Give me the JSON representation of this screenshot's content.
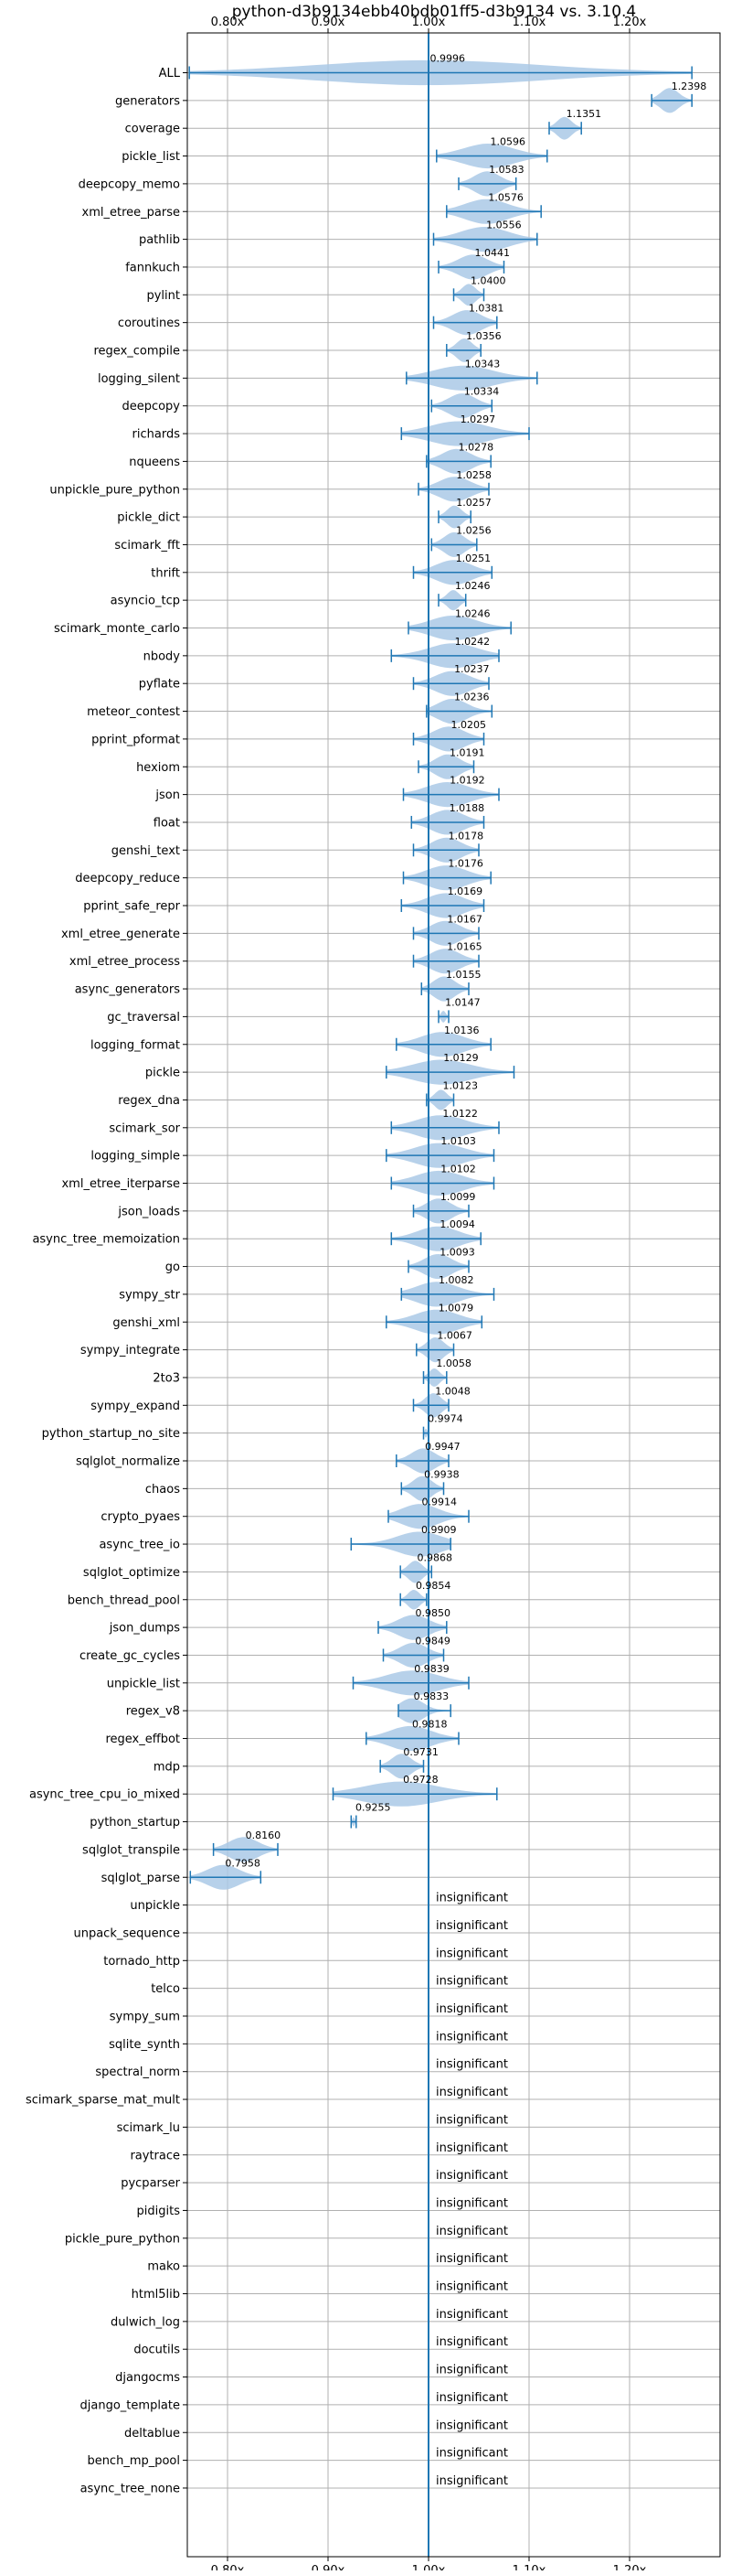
{
  "chart_data": {
    "type": "violin",
    "title": "python-d3b9134ebb40bdb01ff5-d3b9134 vs. 3.10.4",
    "xlabel": "",
    "ylabel": "",
    "x_ticks": [
      "0.80x",
      "0.90x",
      "1.00x",
      "1.10x",
      "1.20x"
    ],
    "x_tick_values": [
      0.8,
      0.9,
      1.0,
      1.1,
      1.2
    ],
    "xlim": [
      0.76,
      1.29
    ],
    "grid": true,
    "reference_line": 1.0,
    "colors": {
      "violin": "#aac9e6",
      "line": "#1f77b4",
      "grid": "#b0b0b0"
    },
    "insignificant_label": "insignificant",
    "benchmarks": [
      {
        "name": "ALL",
        "value": 0.9996,
        "label": "0.9996",
        "low": 0.762,
        "high": 1.262
      },
      {
        "name": "generators",
        "value": 1.2398,
        "label": "1.2398",
        "low": 1.222,
        "high": 1.262
      },
      {
        "name": "coverage",
        "value": 1.1351,
        "label": "1.1351",
        "low": 1.12,
        "high": 1.152
      },
      {
        "name": "pickle_list",
        "value": 1.0596,
        "label": "1.0596",
        "low": 1.008,
        "high": 1.118
      },
      {
        "name": "deepcopy_memo",
        "value": 1.0583,
        "label": "1.0583",
        "low": 1.03,
        "high": 1.087
      },
      {
        "name": "xml_etree_parse",
        "value": 1.0576,
        "label": "1.0576",
        "low": 1.018,
        "high": 1.112
      },
      {
        "name": "pathlib",
        "value": 1.0556,
        "label": "1.0556",
        "low": 1.005,
        "high": 1.108
      },
      {
        "name": "fannkuch",
        "value": 1.0441,
        "label": "1.0441",
        "low": 1.01,
        "high": 1.075
      },
      {
        "name": "pylint",
        "value": 1.04,
        "label": "1.0400",
        "low": 1.025,
        "high": 1.055
      },
      {
        "name": "coroutines",
        "value": 1.0381,
        "label": "1.0381",
        "low": 1.005,
        "high": 1.068
      },
      {
        "name": "regex_compile",
        "value": 1.0356,
        "label": "1.0356",
        "low": 1.018,
        "high": 1.052
      },
      {
        "name": "logging_silent",
        "value": 1.0343,
        "label": "1.0343",
        "low": 0.978,
        "high": 1.108
      },
      {
        "name": "deepcopy",
        "value": 1.0334,
        "label": "1.0334",
        "low": 1.003,
        "high": 1.063
      },
      {
        "name": "richards",
        "value": 1.0297,
        "label": "1.0297",
        "low": 0.973,
        "high": 1.1
      },
      {
        "name": "nqueens",
        "value": 1.0278,
        "label": "1.0278",
        "low": 0.998,
        "high": 1.062
      },
      {
        "name": "unpickle_pure_python",
        "value": 1.0258,
        "label": "1.0258",
        "low": 0.99,
        "high": 1.06
      },
      {
        "name": "pickle_dict",
        "value": 1.0257,
        "label": "1.0257",
        "low": 1.01,
        "high": 1.042
      },
      {
        "name": "scimark_fft",
        "value": 1.0256,
        "label": "1.0256",
        "low": 1.003,
        "high": 1.048
      },
      {
        "name": "thrift",
        "value": 1.0251,
        "label": "1.0251",
        "low": 0.985,
        "high": 1.063
      },
      {
        "name": "asyncio_tcp",
        "value": 1.0246,
        "label": "1.0246",
        "low": 1.01,
        "high": 1.037
      },
      {
        "name": "scimark_monte_carlo",
        "value": 1.0246,
        "label": "1.0246",
        "low": 0.98,
        "high": 1.082
      },
      {
        "name": "nbody",
        "value": 1.0242,
        "label": "1.0242",
        "low": 0.963,
        "high": 1.07
      },
      {
        "name": "pyflate",
        "value": 1.0237,
        "label": "1.0237",
        "low": 0.985,
        "high": 1.06
      },
      {
        "name": "meteor_contest",
        "value": 1.0236,
        "label": "1.0236",
        "low": 0.998,
        "high": 1.063
      },
      {
        "name": "pprint_pformat",
        "value": 1.0205,
        "label": "1.0205",
        "low": 0.985,
        "high": 1.055
      },
      {
        "name": "hexiom",
        "value": 1.0191,
        "label": "1.0191",
        "low": 0.99,
        "high": 1.045
      },
      {
        "name": "json",
        "value": 1.0192,
        "label": "1.0192",
        "low": 0.975,
        "high": 1.07
      },
      {
        "name": "float",
        "value": 1.0188,
        "label": "1.0188",
        "low": 0.983,
        "high": 1.055
      },
      {
        "name": "genshi_text",
        "value": 1.0178,
        "label": "1.0178",
        "low": 0.985,
        "high": 1.05
      },
      {
        "name": "deepcopy_reduce",
        "value": 1.0176,
        "label": "1.0176",
        "low": 0.975,
        "high": 1.062
      },
      {
        "name": "pprint_safe_repr",
        "value": 1.0169,
        "label": "1.0169",
        "low": 0.973,
        "high": 1.055
      },
      {
        "name": "xml_etree_generate",
        "value": 1.0167,
        "label": "1.0167",
        "low": 0.985,
        "high": 1.05
      },
      {
        "name": "xml_etree_process",
        "value": 1.0165,
        "label": "1.0165",
        "low": 0.985,
        "high": 1.05
      },
      {
        "name": "async_generators",
        "value": 1.0155,
        "label": "1.0155",
        "low": 0.993,
        "high": 1.04
      },
      {
        "name": "gc_traversal",
        "value": 1.0147,
        "label": "1.0147",
        "low": 1.01,
        "high": 1.02
      },
      {
        "name": "logging_format",
        "value": 1.0136,
        "label": "1.0136",
        "low": 0.968,
        "high": 1.062
      },
      {
        "name": "pickle",
        "value": 1.0129,
        "label": "1.0129",
        "low": 0.958,
        "high": 1.085
      },
      {
        "name": "regex_dna",
        "value": 1.0123,
        "label": "1.0123",
        "low": 0.998,
        "high": 1.025
      },
      {
        "name": "scimark_sor",
        "value": 1.0122,
        "label": "1.0122",
        "low": 0.963,
        "high": 1.07
      },
      {
        "name": "logging_simple",
        "value": 1.0103,
        "label": "1.0103",
        "low": 0.958,
        "high": 1.065
      },
      {
        "name": "xml_etree_iterparse",
        "value": 1.0102,
        "label": "1.0102",
        "low": 0.963,
        "high": 1.065
      },
      {
        "name": "json_loads",
        "value": 1.0099,
        "label": "1.0099",
        "low": 0.985,
        "high": 1.04
      },
      {
        "name": "async_tree_memoization",
        "value": 1.0094,
        "label": "1.0094",
        "low": 0.963,
        "high": 1.052
      },
      {
        "name": "go",
        "value": 1.0093,
        "label": "1.0093",
        "low": 0.98,
        "high": 1.04
      },
      {
        "name": "sympy_str",
        "value": 1.0082,
        "label": "1.0082",
        "low": 0.973,
        "high": 1.065
      },
      {
        "name": "genshi_xml",
        "value": 1.0079,
        "label": "1.0079",
        "low": 0.958,
        "high": 1.053
      },
      {
        "name": "sympy_integrate",
        "value": 1.0067,
        "label": "1.0067",
        "low": 0.988,
        "high": 1.025
      },
      {
        "name": "2to3",
        "value": 1.0058,
        "label": "1.0058",
        "low": 0.995,
        "high": 1.018
      },
      {
        "name": "sympy_expand",
        "value": 1.0048,
        "label": "1.0048",
        "low": 0.985,
        "high": 1.02
      },
      {
        "name": "python_startup_no_site",
        "value": 0.9974,
        "label": "0.9974",
        "low": 0.995,
        "high": 1.0
      },
      {
        "name": "sqlglot_normalize",
        "value": 0.9947,
        "label": "0.9947",
        "low": 0.968,
        "high": 1.02
      },
      {
        "name": "chaos",
        "value": 0.9938,
        "label": "0.9938",
        "low": 0.973,
        "high": 1.015
      },
      {
        "name": "crypto_pyaes",
        "value": 0.9914,
        "label": "0.9914",
        "low": 0.96,
        "high": 1.04
      },
      {
        "name": "async_tree_io",
        "value": 0.9909,
        "label": "0.9909",
        "low": 0.923,
        "high": 1.022
      },
      {
        "name": "sqlglot_optimize",
        "value": 0.9868,
        "label": "0.9868",
        "low": 0.972,
        "high": 1.003
      },
      {
        "name": "bench_thread_pool",
        "value": 0.9854,
        "label": "0.9854",
        "low": 0.972,
        "high": 0.998
      },
      {
        "name": "json_dumps",
        "value": 0.985,
        "label": "0.9850",
        "low": 0.95,
        "high": 1.018
      },
      {
        "name": "create_gc_cycles",
        "value": 0.9849,
        "label": "0.9849",
        "low": 0.955,
        "high": 1.015
      },
      {
        "name": "unpickle_list",
        "value": 0.9839,
        "label": "0.9839",
        "low": 0.925,
        "high": 1.04
      },
      {
        "name": "regex_v8",
        "value": 0.9833,
        "label": "0.9833",
        "low": 0.97,
        "high": 1.022
      },
      {
        "name": "regex_effbot",
        "value": 0.9818,
        "label": "0.9818",
        "low": 0.938,
        "high": 1.03
      },
      {
        "name": "mdp",
        "value": 0.9731,
        "label": "0.9731",
        "low": 0.952,
        "high": 0.995
      },
      {
        "name": "async_tree_cpu_io_mixed",
        "value": 0.9728,
        "label": "0.9728",
        "low": 0.905,
        "high": 1.068
      },
      {
        "name": "python_startup",
        "value": 0.9255,
        "label": "0.9255",
        "low": 0.923,
        "high": 0.928
      },
      {
        "name": "sqlglot_transpile",
        "value": 0.816,
        "label": "0.8160",
        "low": 0.786,
        "high": 0.85
      },
      {
        "name": "sqlglot_parse",
        "value": 0.7958,
        "label": "0.7958",
        "low": 0.763,
        "high": 0.833
      },
      {
        "name": "unpickle",
        "insignificant": true
      },
      {
        "name": "unpack_sequence",
        "insignificant": true
      },
      {
        "name": "tornado_http",
        "insignificant": true
      },
      {
        "name": "telco",
        "insignificant": true
      },
      {
        "name": "sympy_sum",
        "insignificant": true
      },
      {
        "name": "sqlite_synth",
        "insignificant": true
      },
      {
        "name": "spectral_norm",
        "insignificant": true
      },
      {
        "name": "scimark_sparse_mat_mult",
        "insignificant": true
      },
      {
        "name": "scimark_lu",
        "insignificant": true
      },
      {
        "name": "raytrace",
        "insignificant": true
      },
      {
        "name": "pycparser",
        "insignificant": true
      },
      {
        "name": "pidigits",
        "insignificant": true
      },
      {
        "name": "pickle_pure_python",
        "insignificant": true
      },
      {
        "name": "mako",
        "insignificant": true
      },
      {
        "name": "html5lib",
        "insignificant": true
      },
      {
        "name": "dulwich_log",
        "insignificant": true
      },
      {
        "name": "docutils",
        "insignificant": true
      },
      {
        "name": "djangocms",
        "insignificant": true
      },
      {
        "name": "django_template",
        "insignificant": true
      },
      {
        "name": "deltablue",
        "insignificant": true
      },
      {
        "name": "bench_mp_pool",
        "insignificant": true
      },
      {
        "name": "async_tree_none",
        "insignificant": true
      }
    ]
  }
}
